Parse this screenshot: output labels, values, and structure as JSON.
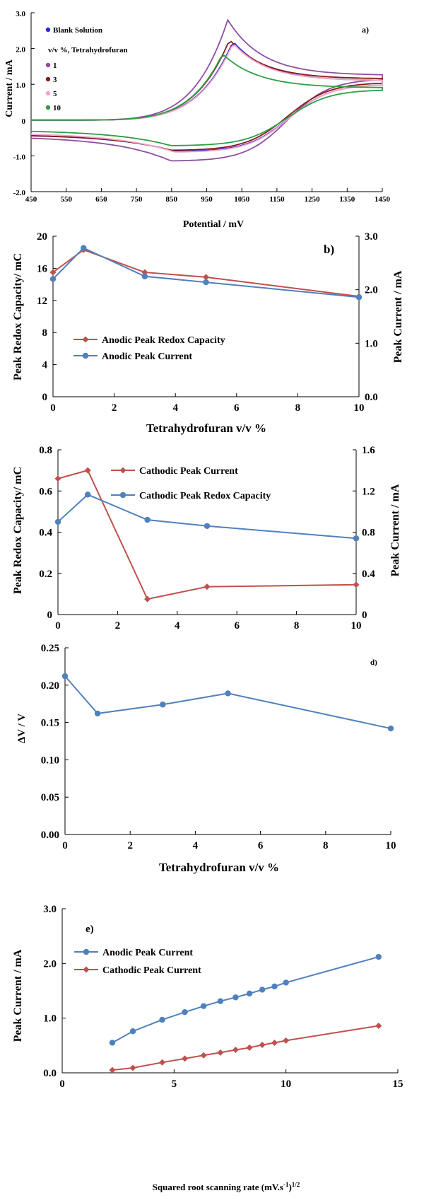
{
  "colors": {
    "blank": "#2b2bd6",
    "thf1": "#8e4fa0",
    "thf3": "#8b1a1a",
    "thf5": "#f2a6c9",
    "thf10": "#2f9e44",
    "red_series": "#c0504d",
    "blue_series": "#4f81bd"
  },
  "chart_data": [
    {
      "id": "a",
      "type": "line",
      "panel_label": "a)",
      "xlabel": "Potential / mV",
      "ylabel": "Current / mA",
      "xlim": [
        450,
        1450
      ],
      "ylim": [
        -2.0,
        3.0
      ],
      "x_ticks": [
        "450",
        "550",
        "650",
        "750",
        "850",
        "950",
        "1050",
        "1150",
        "1250",
        "1350",
        "1450"
      ],
      "y_ticks": [
        "-2.0",
        "-1.0",
        "0",
        "1.0",
        "2.0",
        "3.0"
      ],
      "legend_title": "v/v %, Tetrahydrofuran",
      "legend": [
        "Blank Solution",
        "1",
        "3",
        "5",
        "10"
      ],
      "series": [
        {
          "name": "Blank Solution",
          "color_key": "blank",
          "peak_x": 1025,
          "peak_y": 2.2,
          "end_y": 1.1,
          "valley_x": 860,
          "valley_y": -0.88,
          "start_y": -0.4,
          "top_end_y": 1.0
        },
        {
          "name": "1",
          "color_key": "thf1",
          "peak_x": 1010,
          "peak_y": 2.8,
          "end_y": 1.25,
          "valley_x": 850,
          "valley_y": -1.15,
          "start_y": -0.45,
          "top_end_y": 1.15
        },
        {
          "name": "3",
          "color_key": "thf3",
          "peak_x": 1015,
          "peak_y": 2.25,
          "end_y": 1.15,
          "valley_x": 850,
          "valley_y": -0.85,
          "start_y": -0.4,
          "top_end_y": 1.05
        },
        {
          "name": "5",
          "color_key": "thf5",
          "peak_x": 1025,
          "peak_y": 2.15,
          "end_y": 1.1,
          "valley_x": 860,
          "valley_y": -0.9,
          "start_y": -0.35,
          "top_end_y": 1.0
        },
        {
          "name": "10",
          "color_key": "thf10",
          "peak_x": 995,
          "peak_y": 1.85,
          "end_y": 0.9,
          "valley_x": 850,
          "valley_y": -0.72,
          "start_y": -0.28,
          "top_end_y": 0.85
        }
      ]
    },
    {
      "id": "b",
      "type": "line",
      "panel_label": "b)",
      "xlabel": "Tetrahydrofuran v/v %",
      "ylabel": "Peak Redox Capacity/ mC",
      "y2label": "Peak Current / mA",
      "xlim": [
        0,
        10
      ],
      "ylim": [
        0,
        20
      ],
      "y2lim": [
        0,
        3.0
      ],
      "x_ticks": [
        "0",
        "2",
        "4",
        "6",
        "8",
        "10"
      ],
      "y_ticks": [
        "0",
        "4",
        "8",
        "12",
        "16",
        "20"
      ],
      "y2_ticks": [
        "0.0",
        "1.0",
        "2.0",
        "3.0"
      ],
      "x": [
        0,
        1,
        3,
        5,
        10
      ],
      "series": [
        {
          "name": "Anodic Peak Redox Capacity",
          "axis": "left",
          "marker": "diamond",
          "color_key": "red_series",
          "values": [
            15.5,
            18.3,
            15.5,
            14.9,
            12.5
          ]
        },
        {
          "name": "Anodic Peak Current",
          "axis": "right",
          "marker": "circle",
          "color_key": "blue_series",
          "values": [
            2.2,
            2.78,
            2.25,
            2.14,
            1.86
          ]
        }
      ]
    },
    {
      "id": "c",
      "type": "line",
      "panel_label": "",
      "xlabel": "",
      "ylabel": "Peak Redox Capacity/ mC",
      "y2label": "Peak Current / mA",
      "xlim": [
        0,
        10
      ],
      "ylim": [
        0,
        0.8
      ],
      "y2lim": [
        0,
        1.6
      ],
      "x_ticks": [
        "0",
        "2",
        "4",
        "6",
        "8",
        "10"
      ],
      "y_ticks": [
        "0",
        "0.2",
        "0.4",
        "0.6",
        "0.8"
      ],
      "y2_ticks": [
        "0",
        "0.4",
        "0.8",
        "1.2",
        "1.6"
      ],
      "x": [
        0,
        1,
        3,
        5,
        10
      ],
      "series": [
        {
          "name": "Cathodic Peak Current",
          "axis": "left",
          "marker": "diamond",
          "color_key": "red_series",
          "values": [
            0.66,
            0.7,
            0.075,
            0.135,
            0.145
          ]
        },
        {
          "name": "Cathodic Peak Redox Capacity",
          "axis": "right",
          "marker": "circle",
          "color_key": "blue_series",
          "values": [
            0.9,
            1.165,
            0.92,
            0.86,
            0.74
          ]
        }
      ]
    },
    {
      "id": "d",
      "type": "line",
      "panel_label": "d)",
      "xlabel": "Tetrahydrofuran v/v %",
      "ylabel": "ΔV / V",
      "xlim": [
        0,
        10
      ],
      "ylim": [
        0,
        0.25
      ],
      "x_ticks": [
        "0",
        "2",
        "4",
        "6",
        "8",
        "10"
      ],
      "y_ticks": [
        "0.00",
        "0.05",
        "0.10",
        "0.15",
        "0.20",
        "0.25"
      ],
      "x": [
        0,
        1,
        3,
        5,
        10
      ],
      "series": [
        {
          "name": "",
          "axis": "left",
          "marker": "circle",
          "color_key": "blue_series",
          "values": [
            0.212,
            0.162,
            0.174,
            0.189,
            0.142
          ]
        }
      ]
    },
    {
      "id": "e",
      "type": "line",
      "panel_label": "e)",
      "xlabel": "Squared root scanning rate (mV.s",
      "xlabel_sup1": "-1",
      "xlabel_mid": ")",
      "xlabel_sup2": "1/2",
      "ylabel": "Peak Current / mA",
      "xlim": [
        0,
        15
      ],
      "ylim": [
        0,
        3.0
      ],
      "x_ticks": [
        "0",
        "5",
        "10",
        "15"
      ],
      "y_ticks": [
        "0.0",
        "1.0",
        "2.0",
        "3.0"
      ],
      "x": [
        2.24,
        3.16,
        4.47,
        5.48,
        6.32,
        7.07,
        7.75,
        8.37,
        8.94,
        9.49,
        10.0,
        14.14
      ],
      "series": [
        {
          "name": "Anodic Peak Current",
          "axis": "left",
          "marker": "circle",
          "color_key": "blue_series",
          "values": [
            0.55,
            0.76,
            0.97,
            1.11,
            1.22,
            1.31,
            1.38,
            1.45,
            1.52,
            1.58,
            1.65,
            2.12
          ]
        },
        {
          "name": "Cathodic Peak Current",
          "axis": "left",
          "marker": "diamond",
          "color_key": "red_series",
          "values": [
            0.05,
            0.09,
            0.19,
            0.26,
            0.32,
            0.37,
            0.42,
            0.46,
            0.51,
            0.55,
            0.59,
            0.86
          ]
        }
      ]
    }
  ]
}
